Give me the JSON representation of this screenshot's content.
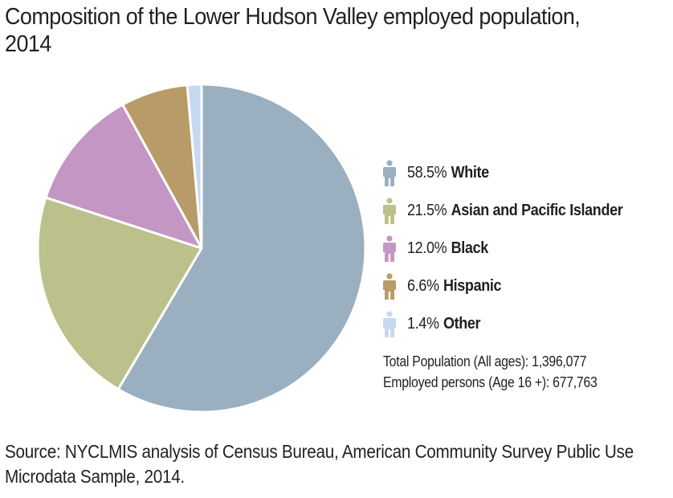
{
  "title": "Composition of the Lower Hudson Valley employed population, 2014",
  "chart_data": {
    "type": "pie",
    "title": "Composition of the Lower Hudson Valley employed population, 2014",
    "slices": [
      {
        "label": "White",
        "value": 58.5,
        "pct_text": "58.5%",
        "color": "#9aafc0"
      },
      {
        "label": "Asian and Pacific Islander",
        "value": 21.5,
        "pct_text": "21.5%",
        "color": "#bcc18c"
      },
      {
        "label": "Black",
        "value": 12.0,
        "pct_text": "12.0%",
        "color": "#c496c4"
      },
      {
        "label": "Hispanic",
        "value": 6.6,
        "pct_text": "6.6%",
        "color": "#b89b68"
      },
      {
        "label": "Other",
        "value": 1.4,
        "pct_text": "1.4%",
        "color": "#c5d9f0"
      }
    ],
    "legend_position": "right",
    "start_direction": "clockwise from top"
  },
  "notes": {
    "total_population": "Total Population (All ages): 1,396,077",
    "employed_persons": "Employed persons (Age 16 +): 677,763"
  },
  "source": "Source: NYCLMIS analysis of Census Bureau, American Community Survey Public Use Microdata Sample, 2014."
}
